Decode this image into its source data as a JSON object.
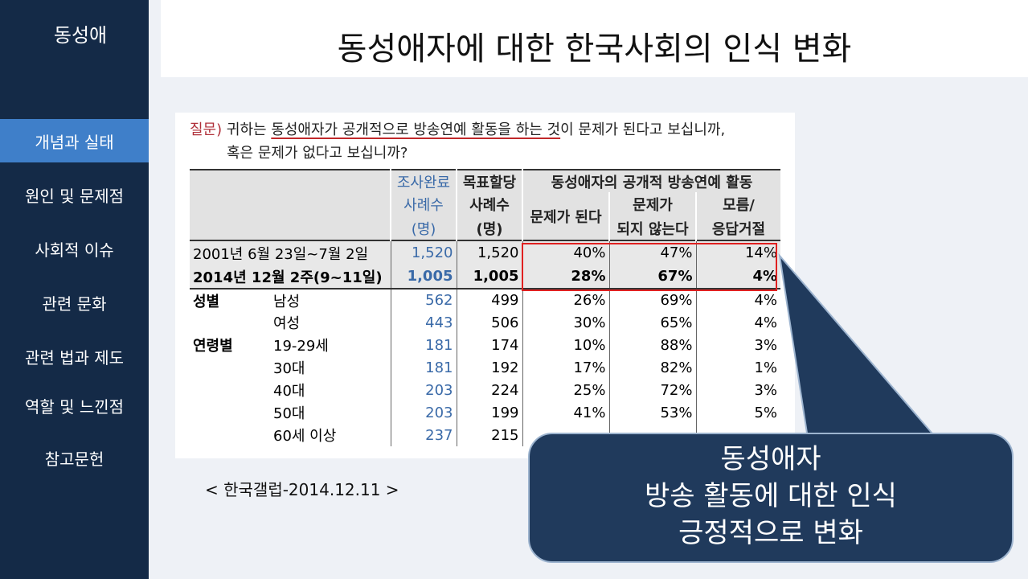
{
  "sidebar": {
    "title": "동성애",
    "items": [
      {
        "label": "개념과 실태",
        "active": true
      },
      {
        "label": "원인 및 문제점",
        "active": false
      },
      {
        "label": "사회적 이슈",
        "active": false
      },
      {
        "label": "관련 문화",
        "active": false
      },
      {
        "label": "관련 법과 제도",
        "active": false
      },
      {
        "label": "역할 및 느낀점",
        "active": false
      },
      {
        "label": "참고문헌",
        "active": false
      }
    ]
  },
  "header": {
    "title": "동성애자에 대한 한국사회의 인식 변화"
  },
  "survey": {
    "question_prefix": "질문)",
    "question_a": "귀하는",
    "question_underlined": "동성애자가 공개적으로 방송연예 활동을 하는 것",
    "question_b": "이 문제가 된다고 보십니까,",
    "question_line2": "혹은 문제가 없다고 보십니까?",
    "headers": {
      "completed": "조사완료",
      "completed2": "사례수",
      "completed3": "(명)",
      "target": "목표할당",
      "target2": "사례수",
      "target3": "(명)",
      "group": "동성애자의 공개적 방송연예 활동",
      "problem": "문제가 된다",
      "no_problem1": "문제가",
      "no_problem2": "되지 않는다",
      "unknown1": "모름/",
      "unknown2": "응답거절"
    },
    "rows": [
      {
        "group": "",
        "label": "2001년 6월 23일~7월 2일",
        "completed": "1,520",
        "target": "1,520",
        "problem": "40%",
        "no_problem": "47%",
        "unknown": "14%"
      },
      {
        "group": "",
        "label": "2014년 12월 2주(9~11일)",
        "completed": "1,005",
        "target": "1,005",
        "problem": "28%",
        "no_problem": "67%",
        "unknown": "4%"
      },
      {
        "group": "성별",
        "label": "남성",
        "completed": "562",
        "target": "499",
        "problem": "26%",
        "no_problem": "69%",
        "unknown": "4%"
      },
      {
        "group": "",
        "label": "여성",
        "completed": "443",
        "target": "506",
        "problem": "30%",
        "no_problem": "65%",
        "unknown": "4%"
      },
      {
        "group": "연령별",
        "label": "19-29세",
        "completed": "181",
        "target": "174",
        "problem": "10%",
        "no_problem": "88%",
        "unknown": "3%"
      },
      {
        "group": "",
        "label": "30대",
        "completed": "181",
        "target": "192",
        "problem": "17%",
        "no_problem": "82%",
        "unknown": "1%"
      },
      {
        "group": "",
        "label": "40대",
        "completed": "203",
        "target": "224",
        "problem": "25%",
        "no_problem": "72%",
        "unknown": "3%"
      },
      {
        "group": "",
        "label": "50대",
        "completed": "203",
        "target": "199",
        "problem": "41%",
        "no_problem": "53%",
        "unknown": "5%"
      },
      {
        "group": "",
        "label": "60세 이상",
        "completed": "237",
        "target": "215",
        "problem": "",
        "no_problem": "",
        "unknown": ""
      }
    ]
  },
  "source": "< 한국갤럽-2014.12.11 >",
  "callout": {
    "line1": "동성애자",
    "line2": "방송 활동에 대한 인식",
    "line3": "긍정적으로 변화"
  },
  "colors": {
    "sidebar": "#142a47",
    "active": "#3f7fc9",
    "callout": "#203a5c",
    "highlight": "#e02020"
  }
}
